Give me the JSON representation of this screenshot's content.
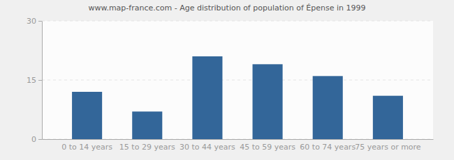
{
  "chart_data": {
    "type": "bar",
    "title": "www.map-france.com - Age distribution of population of Épense in 1999",
    "categories": [
      "0 to 14 years",
      "15 to 29 years",
      "30 to 44 years",
      "45 to 59 years",
      "60 to 74 years",
      "75 years or more"
    ],
    "values": [
      12,
      7,
      21,
      19,
      16,
      11
    ],
    "color": "#336699",
    "ylim": [
      0,
      30
    ],
    "yticks": [
      0,
      15,
      30
    ],
    "grid": true
  }
}
